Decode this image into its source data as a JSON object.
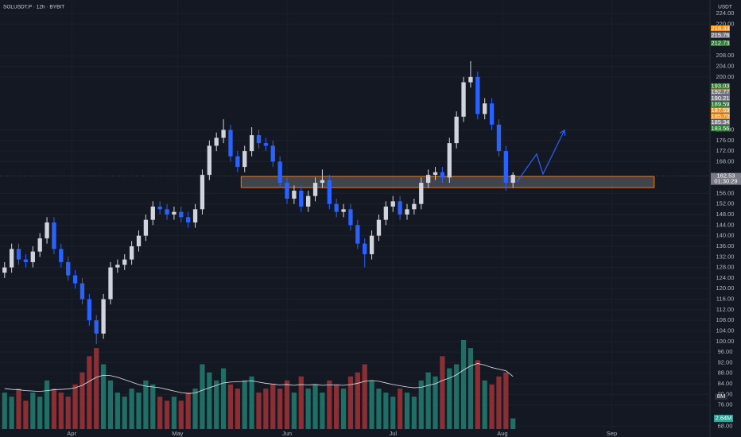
{
  "chart_data": {
    "type": "candlestick",
    "title": "SOLUSDT.P · 12h · BYBIT",
    "currency": "USDT",
    "up_color": "#d1d4dc",
    "down_color": "#2962ff",
    "volume_up_color": "#1f6f66",
    "volume_down_color": "#8c2f35",
    "x": [
      72,
      74,
      76,
      78,
      80,
      82,
      84,
      86,
      88,
      90,
      92,
      94,
      96,
      98,
      100,
      102,
      104,
      106,
      108,
      110,
      112,
      114,
      116,
      118,
      120,
      122,
      124,
      126,
      128,
      130,
      132,
      134,
      136,
      138,
      140,
      142,
      144,
      146,
      148,
      150,
      152,
      154,
      156,
      158,
      160,
      162,
      164,
      166,
      168,
      170,
      172,
      174,
      176,
      178,
      180,
      182,
      184,
      186,
      188,
      190,
      192,
      194,
      196,
      198,
      200,
      202,
      204,
      206,
      208,
      210,
      212,
      214,
      216
    ],
    "open": [
      126,
      128,
      135,
      131,
      130,
      134,
      139,
      145,
      135,
      130,
      125,
      122,
      116,
      108,
      103,
      116,
      128,
      129,
      131,
      136,
      140,
      146,
      151,
      150,
      148,
      149,
      147,
      145,
      150,
      163,
      174,
      177,
      180,
      170,
      166,
      172,
      178,
      175,
      174,
      168,
      160,
      154,
      157,
      151,
      155,
      160,
      161,
      152,
      149,
      150,
      144,
      137,
      133,
      140,
      146,
      151,
      153,
      148,
      150,
      152,
      160,
      163,
      164,
      162,
      175,
      185,
      198,
      200,
      186,
      190,
      182,
      172,
      160
    ],
    "high": [
      130,
      137,
      137,
      133,
      136,
      141,
      147,
      147,
      137,
      132,
      127,
      124,
      118,
      110,
      118,
      130,
      131,
      133,
      138,
      142,
      148,
      153,
      153,
      152,
      151,
      151,
      149,
      152,
      165,
      176,
      179,
      184,
      182,
      172,
      174,
      181,
      180,
      177,
      176,
      170,
      162,
      159,
      159,
      157,
      162,
      165,
      163,
      154,
      152,
      152,
      146,
      139,
      142,
      148,
      153,
      155,
      155,
      152,
      154,
      162,
      165,
      166,
      166,
      177,
      187,
      200,
      206,
      202,
      192,
      192,
      184,
      174,
      164
    ],
    "low": [
      124,
      126,
      129,
      128,
      128,
      132,
      137,
      133,
      128,
      123,
      120,
      114,
      106,
      99,
      101,
      114,
      126,
      127,
      129,
      134,
      138,
      144,
      148,
      146,
      146,
      145,
      143,
      143,
      148,
      161,
      172,
      175,
      168,
      164,
      164,
      170,
      173,
      172,
      166,
      158,
      152,
      152,
      149,
      149,
      153,
      158,
      150,
      147,
      147,
      142,
      135,
      128,
      131,
      138,
      144,
      149,
      146,
      146,
      148,
      150,
      158,
      161,
      160,
      160,
      173,
      183,
      196,
      184,
      184,
      180,
      170,
      157,
      158
    ],
    "close": [
      128,
      135,
      131,
      130,
      134,
      139,
      145,
      135,
      130,
      125,
      122,
      116,
      108,
      103,
      116,
      128,
      129,
      131,
      136,
      140,
      146,
      151,
      150,
      148,
      149,
      147,
      145,
      150,
      163,
      174,
      177,
      180,
      170,
      166,
      172,
      178,
      175,
      174,
      168,
      160,
      154,
      157,
      151,
      155,
      160,
      161,
      152,
      149,
      150,
      144,
      137,
      133,
      140,
      146,
      151,
      153,
      148,
      150,
      152,
      160,
      163,
      164,
      162,
      175,
      185,
      198,
      200,
      186,
      190,
      182,
      172,
      160,
      163
    ],
    "volume": [
      9,
      8,
      10,
      7,
      9,
      8,
      12,
      10,
      9,
      8,
      11,
      14,
      18,
      20,
      16,
      12,
      9,
      8,
      10,
      9,
      12,
      11,
      8,
      7,
      8,
      7,
      9,
      10,
      16,
      14,
      12,
      15,
      11,
      10,
      12,
      13,
      9,
      10,
      11,
      10,
      12,
      9,
      13,
      10,
      11,
      9,
      12,
      11,
      10,
      13,
      14,
      16,
      12,
      10,
      9,
      8,
      10,
      9,
      8,
      12,
      14,
      13,
      18,
      15,
      16,
      22,
      20,
      17,
      12,
      11,
      13,
      14,
      2.64
    ],
    "volume_ma": [
      10,
      9.8,
      9.7,
      9.5,
      9.4,
      9.3,
      9.5,
      9.7,
      9.8,
      9.9,
      10.2,
      10.8,
      11.8,
      12.8,
      13.3,
      13.2,
      12.8,
      12.2,
      11.6,
      11,
      10.6,
      10.4,
      10.2,
      9.8,
      9.4,
      9,
      8.8,
      8.9,
      9.6,
      10.2,
      10.8,
      11.4,
      11.6,
      11.7,
      11.8,
      11.9,
      11.6,
      11.3,
      11.1,
      10.9,
      11,
      10.8,
      11,
      10.9,
      11,
      10.8,
      10.9,
      10.9,
      10.8,
      11,
      11.3,
      11.8,
      12,
      11.8,
      11.4,
      11,
      10.7,
      10.4,
      10.2,
      10.3,
      10.8,
      11.2,
      12,
      12.6,
      13.4,
      14.6,
      15.6,
      16.2,
      15.8,
      15.2,
      14.8,
      14.4,
      13
    ],
    "volume_last_label": "2.64M",
    "volume_ylim": [
      0,
      106
    ],
    "volume_ticks": [
      {
        "value": 8,
        "label": "8M"
      }
    ],
    "xlim": [
      70.7,
      271.8
    ],
    "xticks": [
      {
        "value": 91,
        "label": "Apr"
      },
      {
        "value": 121,
        "label": "May"
      },
      {
        "value": 152,
        "label": "Jun"
      },
      {
        "value": 182,
        "label": "Jul"
      },
      {
        "value": 213,
        "label": "Aug"
      },
      {
        "value": 244,
        "label": "Sep"
      }
    ],
    "ylim": [
      66.9,
      229.1
    ],
    "yticks": [
      {
        "value": 224,
        "label": "224.00"
      },
      {
        "value": 220,
        "label": "220.00"
      },
      {
        "value": 208,
        "label": "208.00"
      },
      {
        "value": 204,
        "label": "204.00"
      },
      {
        "value": 200,
        "label": "200.00"
      },
      {
        "value": 180,
        "label": "180.00"
      },
      {
        "value": 176,
        "label": "176.00"
      },
      {
        "value": 172,
        "label": "172.00"
      },
      {
        "value": 168,
        "label": "168.00"
      },
      {
        "value": 156,
        "label": "156.00"
      },
      {
        "value": 152,
        "label": "152.00"
      },
      {
        "value": 148,
        "label": "148.00"
      },
      {
        "value": 144,
        "label": "144.00"
      },
      {
        "value": 140,
        "label": "140.00"
      },
      {
        "value": 136,
        "label": "136.00"
      },
      {
        "value": 132,
        "label": "132.00"
      },
      {
        "value": 128,
        "label": "128.00"
      },
      {
        "value": 124,
        "label": "124.00"
      },
      {
        "value": 120,
        "label": "120.00"
      },
      {
        "value": 116,
        "label": "116.00"
      },
      {
        "value": 112,
        "label": "112.00"
      },
      {
        "value": 108,
        "label": "108.00"
      },
      {
        "value": 104,
        "label": "104.00"
      },
      {
        "value": 100,
        "label": "100.00"
      },
      {
        "value": 96,
        "label": "96.00"
      },
      {
        "value": 92,
        "label": "92.00"
      },
      {
        "value": 88,
        "label": "88.00"
      },
      {
        "value": 84,
        "label": "84.00"
      },
      {
        "value": 80,
        "label": "80.00"
      },
      {
        "value": 76,
        "label": "76.00"
      },
      {
        "value": 68,
        "label": "68.00"
      }
    ],
    "grid": true,
    "price_labels": [
      {
        "value": 218.33,
        "label": "218.33",
        "color": "#f7931a"
      },
      {
        "value": 215.76,
        "label": "215.76",
        "color": "#787b86"
      },
      {
        "value": 212.73,
        "label": "212.73",
        "color": "#2e7d32"
      },
      {
        "value": 196.06,
        "label": "196.06",
        "color": "#f7931a"
      },
      {
        "value": 193.03,
        "label": "193.03",
        "color": "#2e7d32"
      },
      {
        "value": 192.77,
        "label": "192.77",
        "color": "#787b86"
      },
      {
        "value": 190.21,
        "label": "190.21",
        "color": "#787b86"
      },
      {
        "value": 189.59,
        "label": "189.59",
        "color": "#2e7d32"
      },
      {
        "value": 187.59,
        "label": "187.59",
        "color": "#f7931a"
      },
      {
        "value": 185.7,
        "label": "185.70",
        "color": "#f7931a"
      },
      {
        "value": 185.34,
        "label": "185.34",
        "color": "#787b86"
      },
      {
        "value": 183.56,
        "label": "183.56",
        "color": "#2e7d32"
      }
    ],
    "current_price": {
      "value": 162.53,
      "label": "162.53",
      "countdown": "01:30:29",
      "color": "#787b86"
    },
    "zone": {
      "top": 162.4,
      "bottom": 158.2,
      "x_start": 139,
      "x_end": 256,
      "color": "#f57c00"
    },
    "projection": {
      "x": [
        217.1,
        222.7,
        224.5,
        230.6
      ],
      "y": [
        160.3,
        170.9,
        163.3,
        179.9
      ],
      "color": "#2962ff"
    }
  }
}
